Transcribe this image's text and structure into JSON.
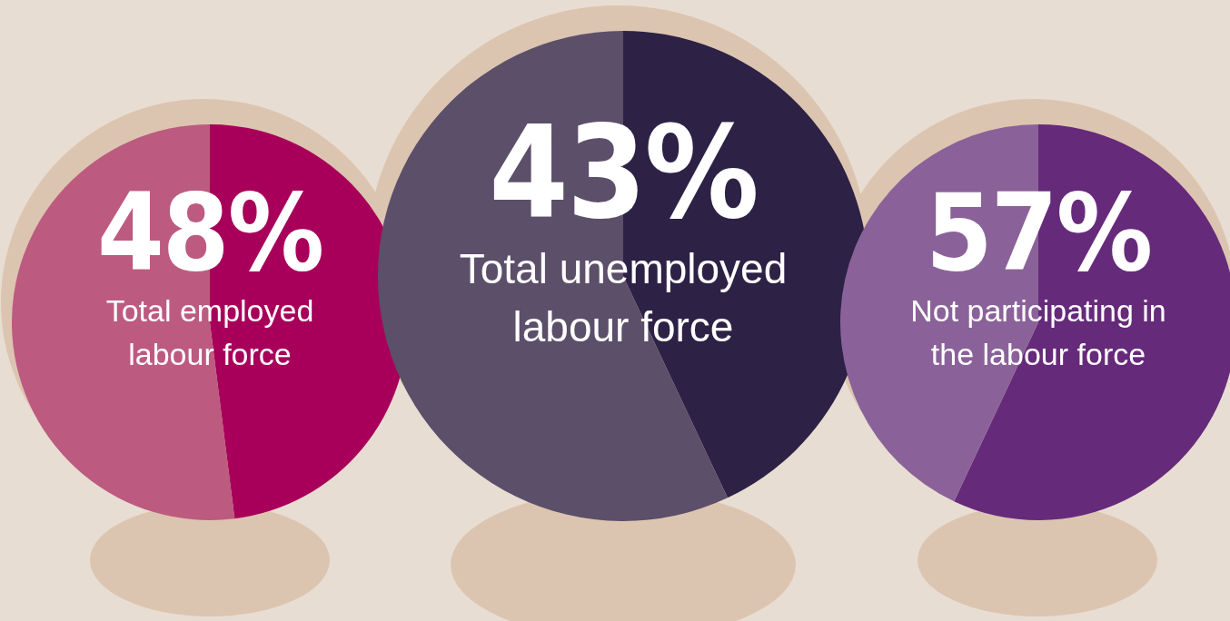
{
  "chart_data": [
    {
      "type": "pie",
      "title": "Total employed labour force",
      "categories": [
        null,
        null
      ],
      "values": [
        48,
        52
      ],
      "colors": [
        "#a8005a",
        "#bd5a80"
      ],
      "value_labels": [
        "48%",
        null
      ]
    },
    {
      "type": "pie",
      "title": "Total unemployed labour force",
      "categories": [
        null,
        null
      ],
      "values": [
        43,
        57
      ],
      "colors": [
        "#2d2146",
        "#5c4f6a"
      ],
      "value_labels": [
        "43%",
        null
      ]
    },
    {
      "type": "pie",
      "title": "Not participating in the labour force",
      "categories": [
        null,
        null
      ],
      "values": [
        57,
        43
      ],
      "colors": [
        "#662a7b",
        "#8a6299"
      ],
      "value_labels": [
        "57%",
        null
      ]
    }
  ]
}
